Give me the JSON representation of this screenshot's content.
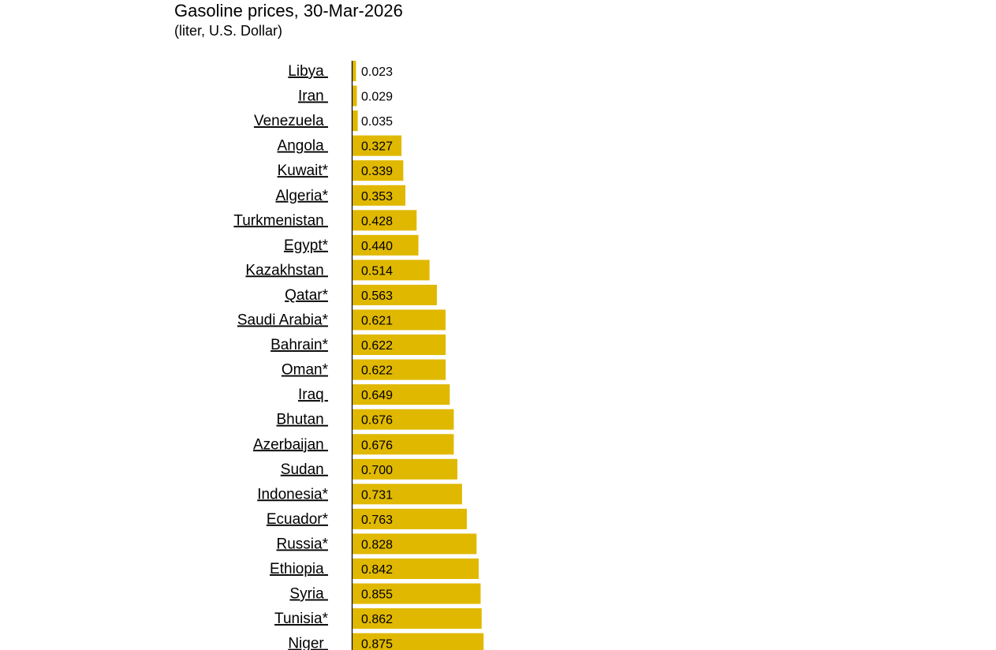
{
  "chart_data": {
    "type": "bar",
    "orientation": "horizontal",
    "title": "Gasoline prices, 30-Mar-2026",
    "subtitle": "(liter, U.S. Dollar)",
    "xlabel": "",
    "ylabel": "",
    "grid": false,
    "legend": "none",
    "bar_color": "#e0b800",
    "categories": [
      "Libya ",
      "Iran ",
      "Venezuela ",
      "Angola ",
      "Kuwait*",
      "Algeria*",
      "Turkmenistan ",
      "Egypt*",
      "Kazakhstan ",
      "Qatar*",
      "Saudi Arabia*",
      "Bahrain*",
      "Oman*",
      "Iraq ",
      "Bhutan ",
      "Azerbaijan ",
      "Sudan ",
      "Indonesia*",
      "Ecuador*",
      "Russia*",
      "Ethiopia ",
      "Syria ",
      "Tunisia*",
      "Niger "
    ],
    "values": [
      0.023,
      0.029,
      0.035,
      0.327,
      0.339,
      0.353,
      0.428,
      0.44,
      0.514,
      0.563,
      0.621,
      0.622,
      0.622,
      0.649,
      0.676,
      0.676,
      0.7,
      0.731,
      0.763,
      0.828,
      0.842,
      0.855,
      0.862,
      0.875
    ],
    "value_labels": [
      "0.023",
      "0.029",
      "0.035",
      "0.327",
      "0.339",
      "0.353",
      "0.428",
      "0.440",
      "0.514",
      "0.563",
      "0.621",
      "0.622",
      "0.622",
      "0.649",
      "0.676",
      "0.676",
      "0.700",
      "0.731",
      "0.763",
      "0.828",
      "0.842",
      "0.855",
      "0.862",
      "0.875"
    ]
  }
}
